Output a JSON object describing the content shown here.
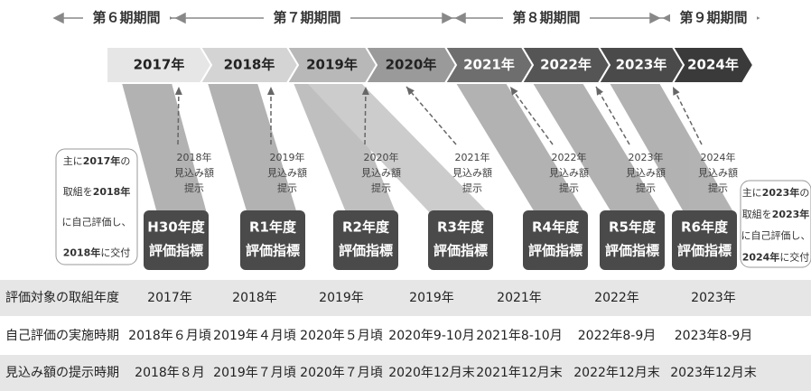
{
  "periods": [
    "第６期期間",
    "第７期期間",
    "第８期期間",
    "第９期期間"
  ],
  "years": [
    "2017年",
    "2018年",
    "2019年",
    "2020年",
    "2021年",
    "2022年",
    "2023年",
    "2024年"
  ],
  "estimates": [
    [
      "2018年",
      "見込み額",
      "提示"
    ],
    [
      "2019年",
      "見込み額",
      "提示"
    ],
    [
      "2020年",
      "見込み額",
      "提示"
    ],
    [
      "2021年",
      "見込み額",
      "提示"
    ],
    [
      "2022年",
      "見込み額",
      "提示"
    ],
    [
      "2023年",
      "見込み額",
      "提示"
    ],
    [
      "2024年",
      "見込み額",
      "提示"
    ]
  ],
  "indicators": [
    [
      "H30年度",
      "評価指標"
    ],
    [
      "R1年度",
      "評価指標"
    ],
    [
      "R2年度",
      "評価指標"
    ],
    [
      "R3年度",
      "評価指標"
    ],
    [
      "R4年度",
      "評価指標"
    ],
    [
      "R5年度",
      "評価指標"
    ],
    [
      "R6年度",
      "評価指標"
    ]
  ],
  "notes": [
    [
      [
        "主に",
        "2017年",
        "の"
      ],
      [
        "取組を",
        "2018年"
      ],
      [
        "に自己評価し、"
      ],
      [
        "",
        "2018年",
        "に交付"
      ]
    ],
    [
      [
        "主に",
        "2023年",
        "の"
      ],
      [
        "取組を",
        "2023年"
      ],
      [
        "に自己評価し、"
      ],
      [
        "",
        "2024年",
        "に交付"
      ]
    ]
  ],
  "table": {
    "rows": [
      [
        "評価対象の取組年度",
        "2017年",
        "2018年",
        "2019年",
        "2019年",
        "2021年",
        "2022年",
        "2023年"
      ],
      [
        "自己評価の実施時期",
        "2018年６月頃",
        "2019年４月頃",
        "2020年５月頃",
        "2020年9-10月",
        "2021年8-10月",
        "2022年8-9月",
        "2023年8-9月"
      ],
      [
        "見込み額の提示時期",
        "2018年８月",
        "2019年７月頃",
        "2020年７月頃",
        "2020年12月末",
        "2021年12月末",
        "2022年12月末",
        "2023年12月末"
      ]
    ]
  }
}
